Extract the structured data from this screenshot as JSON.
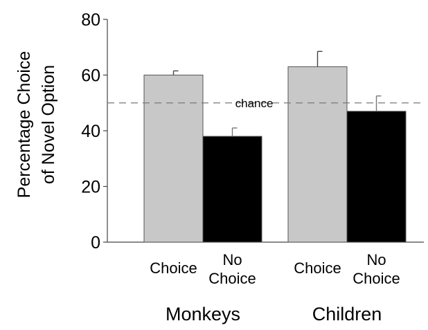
{
  "chart_data": {
    "type": "bar",
    "ylabel_lines": [
      "Percentage Choice",
      "of Novel Option"
    ],
    "ylim": [
      0,
      80
    ],
    "yticks": [
      0,
      20,
      40,
      60,
      80
    ],
    "groups": [
      {
        "name": "Monkeys",
        "bars": [
          {
            "label": [
              "Choice"
            ],
            "value": 60,
            "error": 1.5,
            "color": "#c8c8c8"
          },
          {
            "label": [
              "No",
              "Choice"
            ],
            "value": 38,
            "error": 3,
            "color": "#000000"
          }
        ]
      },
      {
        "name": "Children",
        "bars": [
          {
            "label": [
              "Choice"
            ],
            "value": 63,
            "error": 5.5,
            "color": "#c8c8c8"
          },
          {
            "label": [
              "No",
              "Choice"
            ],
            "value": 47,
            "error": 5.5,
            "color": "#000000"
          }
        ]
      }
    ],
    "reference_line": {
      "value": 50,
      "label": "chance",
      "style": "dashed",
      "color": "#777777"
    },
    "grid": false,
    "legend": "none"
  }
}
